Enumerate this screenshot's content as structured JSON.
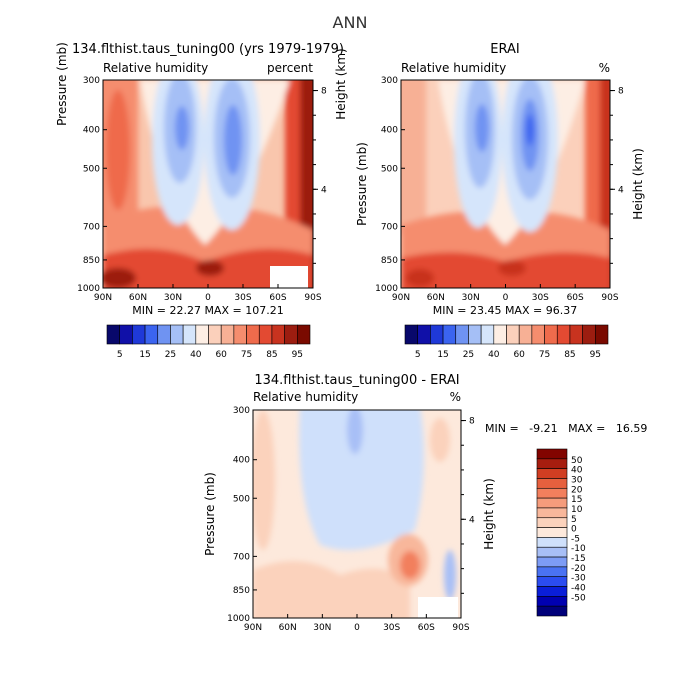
{
  "figure": {
    "title": "ANN"
  },
  "colors": {
    "absolute_levels": [
      "#08086b",
      "#1010a8",
      "#1f39d8",
      "#3b64f0",
      "#6f93f2",
      "#a5bff6",
      "#d5e5fb",
      "#fdeee4",
      "#fbd0bb",
      "#f7b095",
      "#f58d6e",
      "#ef6b4c",
      "#e34a32",
      "#c8331f",
      "#9c1d10",
      "#7a0a00"
    ],
    "diff_levels": [
      "#00007a",
      "#0000b0",
      "#0a1ed8",
      "#2b4cf0",
      "#4a72f2",
      "#7d9cf5",
      "#a8bff6",
      "#cfe0fb",
      "#fde9dc",
      "#fbd2bc",
      "#f8b79b",
      "#f59c7c",
      "#f27f5d",
      "#e6603e",
      "#d03e22",
      "#a61d0f",
      "#820400"
    ]
  },
  "chart_data": [
    {
      "type": "heatmap",
      "title": "134.flthist.taus_tuning00 (yrs 1979-1979)",
      "subtitle_left": "Relative humidity",
      "subtitle_right": "percent",
      "ylabel": "Pressure (mb)",
      "ylabel_right": "Height (km)",
      "x_ticks": [
        "90N",
        "60N",
        "30N",
        "0",
        "30S",
        "60S",
        "90S"
      ],
      "y_ticks": [
        "300",
        "400",
        "500",
        "700",
        "850",
        "1000"
      ],
      "y_right_ticks": [
        "8",
        "4"
      ],
      "stats": "MIN = 22.27   MAX = 107.21",
      "min": 22.27,
      "max": 107.21,
      "colorbar_labels": [
        "5",
        "15",
        "25",
        "40",
        "60",
        "75",
        "85",
        "95"
      ]
    },
    {
      "type": "heatmap",
      "title": "ERAI",
      "subtitle_left": "Relative humidity",
      "subtitle_right": "%",
      "ylabel": "Pressure (mb)",
      "ylabel_right": "Height (km)",
      "x_ticks": [
        "90N",
        "60N",
        "30N",
        "0",
        "30S",
        "60S",
        "90S"
      ],
      "y_ticks": [
        "300",
        "400",
        "500",
        "700",
        "850",
        "1000"
      ],
      "y_right_ticks": [
        "8",
        "4"
      ],
      "stats": "MIN = 23.45   MAX = 96.37",
      "min": 23.45,
      "max": 96.37,
      "colorbar_labels": [
        "5",
        "15",
        "25",
        "40",
        "60",
        "75",
        "85",
        "95"
      ]
    },
    {
      "type": "heatmap",
      "title": "134.flthist.taus_tuning00 - ERAI",
      "subtitle_left": "Relative humidity",
      "subtitle_right": "%",
      "ylabel": "Pressure (mb)",
      "ylabel_right": "Height (km)",
      "x_ticks": [
        "90N",
        "60N",
        "30N",
        "0",
        "30S",
        "60S",
        "90S"
      ],
      "y_ticks": [
        "300",
        "400",
        "500",
        "700",
        "850",
        "1000"
      ],
      "y_right_ticks": [
        "8",
        "4"
      ],
      "stats": "MIN =   -9.21   MAX =   16.59",
      "min": -9.21,
      "max": 16.59,
      "colorbar_labels": [
        "50",
        "40",
        "30",
        "20",
        "15",
        "10",
        "5",
        "0",
        "-5",
        "-10",
        "-15",
        "-20",
        "-30",
        "-40",
        "-50"
      ]
    }
  ]
}
